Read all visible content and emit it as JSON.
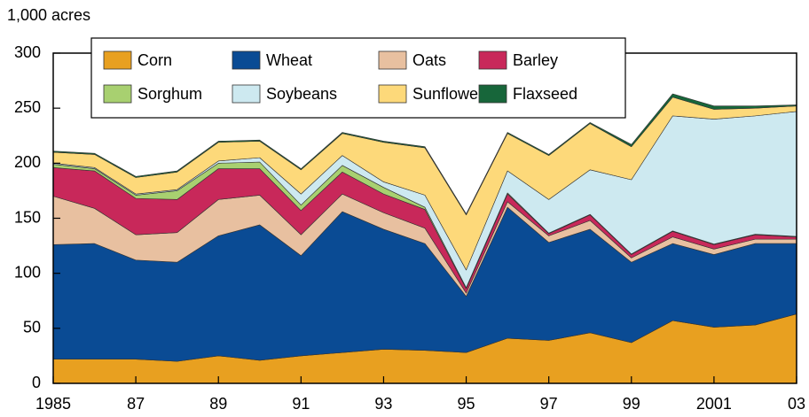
{
  "chart_data": {
    "type": "stacked-area",
    "y_label": "1,000 acres",
    "x": [
      1985,
      1986,
      1987,
      1988,
      1989,
      1990,
      1991,
      1992,
      1993,
      1994,
      1995,
      1996,
      1997,
      1998,
      1999,
      2000,
      2001,
      2002,
      2003
    ],
    "xlim": [
      1985,
      2003
    ],
    "xticks": [
      1985,
      {
        "value": 1987,
        "label": "87"
      },
      {
        "value": 1989,
        "label": "89"
      },
      {
        "value": 1991,
        "label": "91"
      },
      {
        "value": 1993,
        "label": "93"
      },
      {
        "value": 1995,
        "label": "95"
      },
      {
        "value": 1997,
        "label": "97"
      },
      {
        "value": 1999,
        "label": "99"
      },
      2001,
      {
        "value": 2003,
        "label": "03"
      }
    ],
    "ylim": [
      0,
      300
    ],
    "yticks": [
      0,
      50,
      100,
      150,
      200,
      250,
      300
    ],
    "legend": "top",
    "series": [
      {
        "name": "Corn",
        "color": "#e8a020",
        "values": [
          22,
          22,
          22,
          20,
          25,
          21,
          25,
          28,
          31,
          30,
          28,
          41,
          39,
          46,
          37,
          57,
          51,
          53,
          63
        ]
      },
      {
        "name": "Wheat",
        "color": "#0a4b94",
        "values": [
          104,
          105,
          90,
          90,
          109,
          123,
          91,
          128,
          109,
          97,
          51,
          119,
          89,
          94,
          73,
          70,
          66,
          74,
          64
        ]
      },
      {
        "name": "Oats",
        "color": "#e8c0a0",
        "values": [
          44,
          32,
          23,
          27,
          33,
          27,
          19,
          16,
          15,
          14,
          3,
          5,
          6,
          8,
          4,
          6,
          5,
          4,
          4
        ]
      },
      {
        "name": "Barley",
        "color": "#c8285a",
        "values": [
          26,
          34,
          33,
          30,
          28,
          24,
          22,
          20,
          17,
          17,
          4,
          7,
          2,
          5,
          3,
          5,
          4,
          4,
          2
        ]
      },
      {
        "name": "Sorghum",
        "color": "#a8d070",
        "values": [
          3,
          2,
          3,
          8,
          5,
          6,
          5,
          6,
          6,
          2,
          1,
          1,
          0.5,
          0.5,
          0.5,
          0.5,
          0.5,
          0.5,
          0.5
        ]
      },
      {
        "name": "Soybeans",
        "color": "#cde9f0",
        "values": [
          1,
          1,
          1,
          1,
          2,
          4,
          10,
          9,
          5,
          11,
          16,
          20,
          30.5,
          40.5,
          67.5,
          104.5,
          113.5,
          107.5,
          113.5
        ]
      },
      {
        "name": "Sunflower",
        "color": "#fdd97a",
        "values": [
          10,
          12,
          15,
          16,
          17,
          15,
          22,
          20,
          36,
          43,
          50,
          34,
          40,
          42,
          30,
          17,
          9,
          7,
          5
        ]
      },
      {
        "name": "Flaxseed",
        "color": "#17663a",
        "values": [
          1,
          1,
          1,
          1,
          1,
          1,
          1,
          1,
          1,
          1,
          1,
          1,
          1,
          1,
          2,
          3,
          3,
          2,
          1
        ]
      }
    ]
  }
}
